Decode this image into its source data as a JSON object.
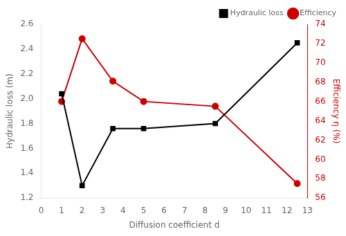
{
  "chart_data": {
    "type": "line",
    "xlabel": "Diffusion coefficient d",
    "ylabel": "Hydraulic loss (m)",
    "y2label": "Efficiency η (%)",
    "x": [
      1,
      2,
      3.5,
      5,
      8.5,
      12.5
    ],
    "series": [
      {
        "name": "Hydraulic loss",
        "color": "#000000",
        "marker": "square",
        "axis": "y",
        "values": [
          2.04,
          1.3,
          1.76,
          1.76,
          1.8,
          2.45
        ]
      },
      {
        "name": "Efficiency",
        "color": "#cc0000",
        "marker": "circle",
        "axis": "y2",
        "values": [
          66.0,
          72.5,
          68.1,
          66.0,
          65.5,
          57.5
        ]
      }
    ],
    "xlim": [
      0,
      13
    ],
    "xticks": [
      0,
      1,
      2,
      3,
      4,
      5,
      6,
      7,
      8,
      9,
      10,
      11,
      12,
      13
    ],
    "ylim": [
      1.2,
      2.6
    ],
    "yticks": [
      1.2,
      1.4,
      1.6,
      1.8,
      {
        "value": 2,
        "label": "2.0"
      },
      2.2,
      2.4,
      2.6
    ],
    "y2lim": [
      56,
      74
    ],
    "y2ticks": [
      56,
      58,
      60,
      62,
      64,
      66,
      68,
      70,
      72,
      74
    ],
    "grid": false,
    "legend": "upper right"
  }
}
